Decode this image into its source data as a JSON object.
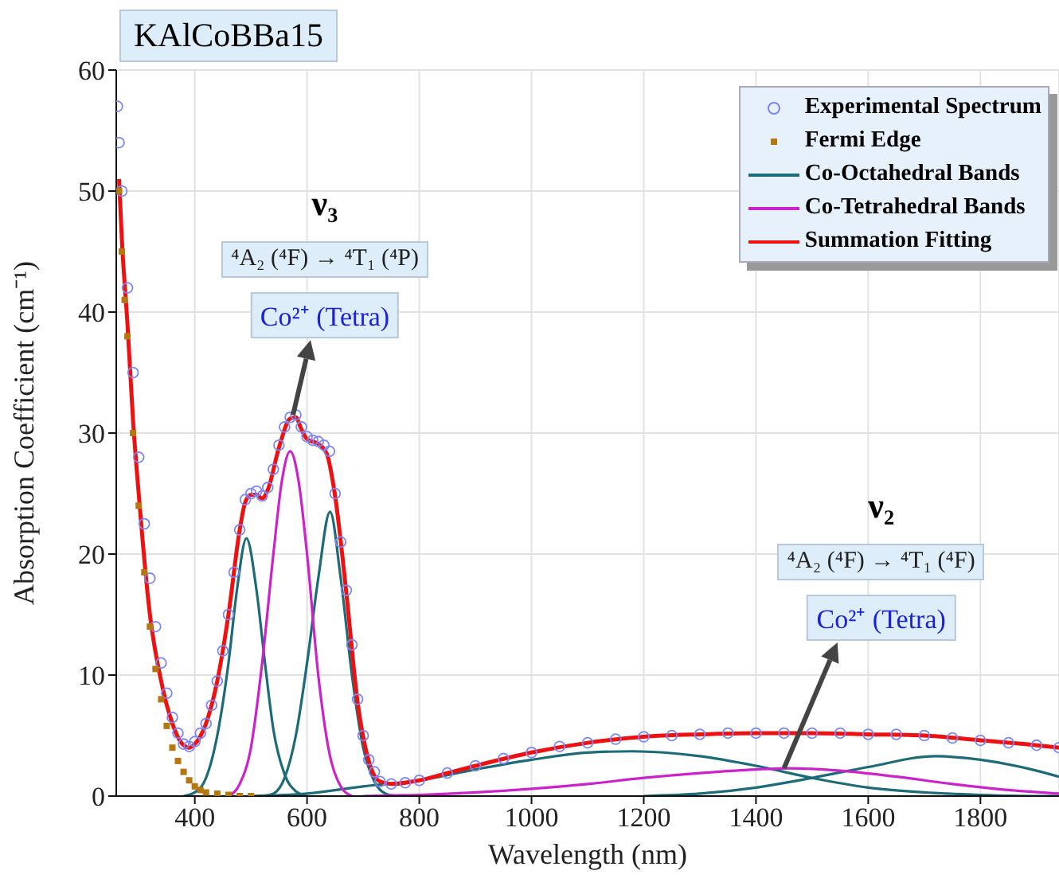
{
  "chart_data": {
    "type": "line",
    "title": "KAlCoBBa15",
    "xlabel": "Wavelength (nm)",
    "ylabel": "Absorption Coefficient (cm⁻¹)",
    "xlim": [
      260,
      1940
    ],
    "xticks": [
      400,
      600,
      800,
      1000,
      1200,
      1400,
      1600,
      1800
    ],
    "ylim": [
      0,
      60
    ],
    "yticks": [
      0,
      10,
      20,
      30,
      40,
      50,
      60
    ],
    "grid": true,
    "legend": "top right",
    "series": [
      {
        "name": "Experimental Spectrum",
        "type": "scatter",
        "marker": "circle",
        "color": "#7c86f4",
        "x": [
          262,
          265,
          270,
          280,
          290,
          300,
          310,
          320,
          330,
          340,
          350,
          360,
          370,
          380,
          390,
          400,
          410,
          420,
          430,
          440,
          450,
          460,
          470,
          480,
          490,
          500,
          510,
          520,
          530,
          540,
          550,
          560,
          570,
          580,
          590,
          600,
          610,
          620,
          630,
          640,
          650,
          660,
          670,
          680,
          690,
          700,
          710,
          720,
          730,
          750,
          775,
          800,
          850,
          900,
          950,
          1000,
          1050,
          1100,
          1150,
          1200,
          1250,
          1300,
          1350,
          1400,
          1450,
          1500,
          1550,
          1600,
          1650,
          1700,
          1750,
          1800,
          1850,
          1900,
          1940
        ],
        "values": [
          57,
          54,
          50,
          42,
          35,
          28,
          22.5,
          18,
          14,
          11,
          8.5,
          6.5,
          5.2,
          4.3,
          4.1,
          4.5,
          5.2,
          6,
          7.5,
          9.5,
          12,
          15,
          18.5,
          22,
          24.5,
          25,
          25.2,
          24.8,
          25.5,
          27,
          29,
          30.5,
          31.3,
          31.5,
          30.5,
          29.7,
          29.4,
          29.3,
          29,
          28.5,
          25,
          21,
          17,
          12.5,
          8,
          5,
          3,
          2,
          1.2,
          1,
          1.1,
          1.3,
          1.9,
          2.5,
          3.1,
          3.6,
          4.1,
          4.4,
          4.7,
          4.9,
          5,
          5.1,
          5.2,
          5.2,
          5.2,
          5.2,
          5.2,
          5.1,
          5.1,
          5,
          4.8,
          4.6,
          4.4,
          4.2,
          4
        ]
      },
      {
        "name": "Fermi Edge",
        "type": "scatter",
        "marker": "square",
        "color": "#b5770f",
        "x": [
          265,
          270,
          275,
          280,
          290,
          300,
          310,
          320,
          330,
          340,
          350,
          360,
          370,
          380,
          390,
          400,
          410,
          420,
          440,
          460,
          480,
          500
        ],
        "values": [
          50,
          45,
          41,
          38,
          30,
          24,
          18.5,
          14,
          10.5,
          8,
          5.8,
          4,
          2.9,
          2,
          1.3,
          0.8,
          0.5,
          0.3,
          0.2,
          0.1,
          0,
          0
        ]
      },
      {
        "name": "Co-Octahedral Bands",
        "color": "#1b6b78",
        "x": [
          380,
          400,
          420,
          440,
          460,
          475,
          492,
          510,
          525,
          540,
          560,
          580,
          600
        ],
        "values": [
          0,
          0.3,
          1.5,
          5,
          11,
          17,
          21.3,
          17,
          11,
          5.5,
          1.8,
          0.4,
          0
        ]
      },
      {
        "color": "#1b6b78",
        "x": [
          520,
          540,
          560,
          580,
          600,
          620,
          641,
          660,
          680,
          700,
          720,
          740,
          760
        ],
        "values": [
          0,
          0.2,
          1.5,
          5,
          11,
          18,
          23.5,
          18,
          10,
          4,
          1.2,
          0.2,
          0
        ]
      },
      {
        "color": "#1b6b78",
        "x": [
          500,
          600,
          700,
          800,
          900,
          1000,
          1100,
          1180,
          1300,
          1400,
          1500,
          1600,
          1700,
          1800,
          1900,
          1940
        ],
        "values": [
          0,
          0.2,
          0.8,
          1.3,
          2.2,
          3,
          3.6,
          3.7,
          3.3,
          2.5,
          1.5,
          0.7,
          0.3,
          0.1,
          0,
          0
        ]
      },
      {
        "color": "#1b6b78",
        "x": [
          1200,
          1300,
          1400,
          1500,
          1600,
          1720,
          1800,
          1900,
          1940
        ],
        "values": [
          0,
          0.2,
          0.7,
          1.5,
          2.4,
          3.3,
          3,
          2.1,
          1.6
        ]
      },
      {
        "name": "Co-Tetrahedral Bands",
        "color": "#cc22cc",
        "x": [
          460,
          480,
          500,
          520,
          540,
          555,
          570,
          585,
          600,
          620,
          640,
          660,
          680
        ],
        "values": [
          0,
          1,
          4,
          11,
          20,
          26,
          28.5,
          26,
          20,
          10,
          3.5,
          0.8,
          0
        ]
      },
      {
        "color": "#cc22cc",
        "x": [
          700,
          800,
          900,
          1000,
          1100,
          1200,
          1300,
          1400,
          1460,
          1550,
          1650,
          1750,
          1850,
          1940
        ],
        "values": [
          0,
          0.1,
          0.3,
          0.6,
          1,
          1.5,
          1.9,
          2.2,
          2.3,
          2.1,
          1.6,
          1,
          0.5,
          0.2
        ]
      },
      {
        "name": "Summation Fitting",
        "color": "#ee1111",
        "x": [
          265,
          270,
          280,
          290,
          300,
          320,
          340,
          360,
          380,
          390,
          400,
          420,
          440,
          460,
          480,
          490,
          500,
          510,
          520,
          530,
          550,
          570,
          580,
          590,
          600,
          620,
          635,
          650,
          670,
          690,
          710,
          730,
          750,
          800,
          850,
          900,
          1000,
          1100,
          1200,
          1300,
          1400,
          1500,
          1600,
          1700,
          1800,
          1900,
          1940
        ],
        "values": [
          51,
          46,
          39,
          31,
          25,
          15,
          9.5,
          6,
          4.2,
          4,
          4.3,
          6,
          9.5,
          15,
          22,
          24.3,
          24.9,
          24.9,
          24.6,
          25.3,
          28.8,
          31.2,
          31.3,
          30.3,
          29.5,
          29.1,
          28.3,
          24.8,
          16.8,
          7.8,
          2.9,
          1.2,
          1,
          1.3,
          1.9,
          2.5,
          3.6,
          4.4,
          4.9,
          5.1,
          5.2,
          5.2,
          5.1,
          5,
          4.6,
          4.2,
          4
        ]
      }
    ],
    "annotations": [
      "ν₃",
      "⁴A₂ (⁴F) → ⁴T₁ (⁴P)",
      {
        "text": "Co²⁺ (Tetra)",
        "x": 575,
        "y": 31.5
      },
      "ν₂",
      "⁴A₂ (⁴F) → ⁴T₁ (⁴F)",
      {
        "text": "Co²⁺ (Tetra)",
        "x": 1450,
        "y": 2.3
      }
    ]
  }
}
